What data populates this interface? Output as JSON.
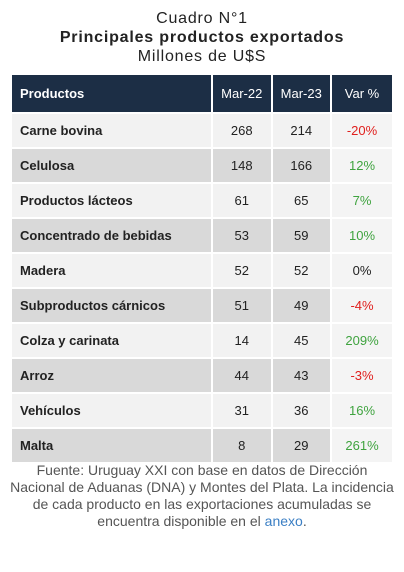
{
  "header": {
    "title": "Cuadro N°1",
    "subtitle": "Principales productos exportados",
    "unit": "Millones de U$S"
  },
  "table": {
    "columns": [
      "Productos",
      "Mar-22",
      "Mar-23",
      "Var %"
    ],
    "rows": [
      [
        "Carne bovina",
        268,
        214,
        "-20%"
      ],
      [
        "Celulosa",
        148,
        166,
        "12%"
      ],
      [
        "Productos lácteos",
        61,
        65,
        "7%"
      ],
      [
        "Concentrado de bebidas",
        53,
        59,
        "10%"
      ],
      [
        "Madera",
        52,
        52,
        "0%"
      ],
      [
        "Subproductos cárnicos",
        51,
        49,
        "-4%"
      ],
      [
        "Colza y carinata",
        14,
        45,
        "209%"
      ],
      [
        "Arroz",
        44,
        43,
        "-3%"
      ],
      [
        "Vehículos",
        31,
        36,
        "16%"
      ],
      [
        "Malta",
        8,
        29,
        "261%"
      ]
    ]
  },
  "footnote": {
    "text": "Fuente: Uruguay XXI con base en datos de Dirección Nacional de Aduanas (DNA) y Montes del Plata. La incidencia de cada producto en las exportaciones acumuladas se encuentra disponible en el",
    "link": "anexo",
    "end": "."
  }
}
